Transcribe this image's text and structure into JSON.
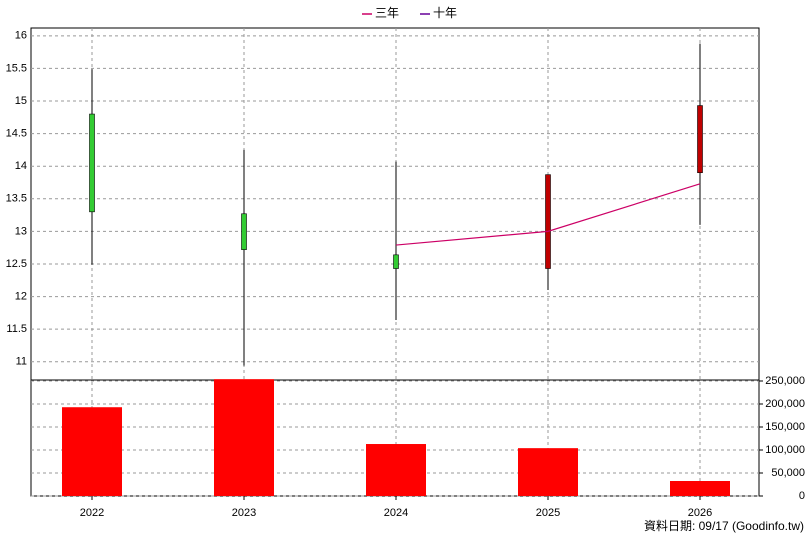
{
  "chart_data": {
    "type": "candlestick",
    "categories": [
      "2022",
      "2023",
      "2024",
      "2025",
      "2026"
    ],
    "open": [
      14.8,
      13.27,
      12.64,
      12.43,
      13.9
    ],
    "high": [
      15.49,
      14.25,
      14.07,
      13.87,
      15.88
    ],
    "low": [
      12.49,
      10.94,
      11.64,
      12.1,
      13.1
    ],
    "close": [
      13.3,
      12.72,
      12.43,
      13.87,
      14.93
    ],
    "up_color": "#c00000",
    "down_color": "#33cc33",
    "series": [
      {
        "name": "三年",
        "color": "#cc0066",
        "values": [
          null,
          null,
          12.79,
          13.0,
          13.73
        ]
      },
      {
        "name": "十年",
        "color": "#660099",
        "values": [
          null,
          null,
          null,
          null,
          null
        ]
      }
    ],
    "ylim": [
      10.72,
      16.12
    ],
    "yticks": [
      11,
      11.5,
      12,
      12.5,
      13,
      13.5,
      14,
      14.5,
      15,
      15.5,
      16
    ],
    "volume": {
      "values": [
        193000,
        254000,
        113000,
        104000,
        32600
      ],
      "color": "#ff0000",
      "ylim": [
        0,
        250000
      ],
      "yticks": [
        0,
        {
          "value": 50000,
          "label": "50,000"
        },
        {
          "value": 100000,
          "label": "100,000"
        },
        {
          "value": 150000,
          "label": "150,000"
        },
        {
          "value": 200000,
          "label": "200,000"
        },
        {
          "value": 250000,
          "label": "250,000"
        }
      ]
    },
    "grid": true,
    "footer": "資料日期: 09/17 (Goodinfo.tw)"
  }
}
